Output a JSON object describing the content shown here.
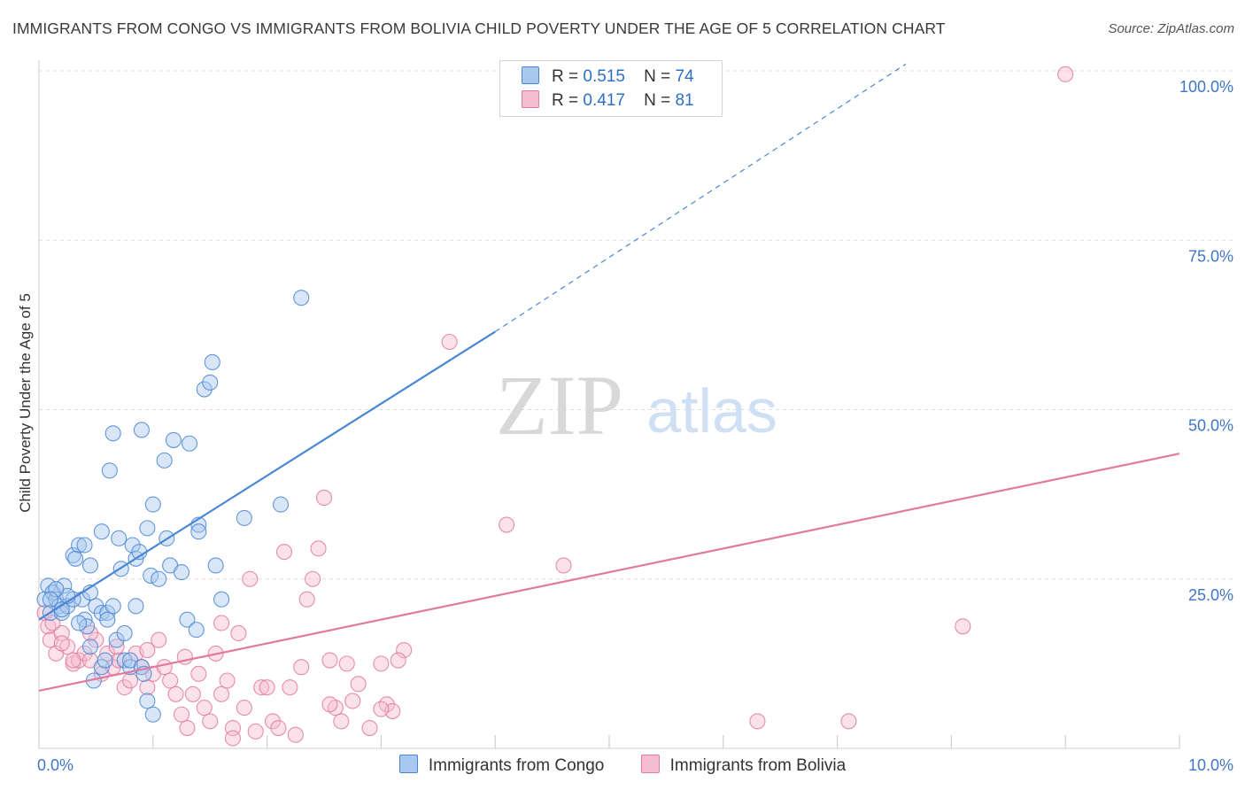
{
  "title": "IMMIGRANTS FROM CONGO VS IMMIGRANTS FROM BOLIVIA CHILD POVERTY UNDER THE AGE OF 5 CORRELATION CHART",
  "source": "Source: ZipAtlas.com",
  "watermark": {
    "zip": "ZIP",
    "atlas": "atlas"
  },
  "legend": {
    "series": [
      {
        "r_label": "R =",
        "r_value": "0.515",
        "n_label": "N =",
        "n_value": "74"
      },
      {
        "r_label": "R =",
        "r_value": "0.417",
        "n_label": "N =",
        "n_value": "81"
      }
    ]
  },
  "chart_data": {
    "type": "scatter",
    "title": "IMMIGRANTS FROM CONGO VS IMMIGRANTS FROM BOLIVIA CHILD POVERTY UNDER THE AGE OF 5 CORRELATION CHART",
    "xlabel": "",
    "ylabel": "Child Poverty Under the Age of 5",
    "xlim": [
      0,
      10
    ],
    "ylim": [
      0,
      100
    ],
    "x_tick_labels": [
      {
        "value": 0,
        "label": "0.0%"
      },
      {
        "value": 10,
        "label": "10.0%"
      }
    ],
    "y_tick_labels": [
      {
        "value": 25,
        "label": "25.0%"
      },
      {
        "value": 50,
        "label": "50.0%"
      },
      {
        "value": 75,
        "label": "75.0%"
      },
      {
        "value": 100,
        "label": "100.0%"
      }
    ],
    "grid": true,
    "series": [
      {
        "name": "Immigrants from Congo",
        "color": "#4a86d4",
        "fill": "#a9c8ee",
        "R": 0.515,
        "N": 74,
        "trend": {
          "x0": 0.0,
          "y0": 19.0,
          "x1": 4.0,
          "y1": 61.5,
          "dash_x1": 7.6,
          "dash_y1": 101.0
        },
        "points": [
          [
            0.05,
            22
          ],
          [
            0.08,
            24
          ],
          [
            0.1,
            20
          ],
          [
            0.12,
            23
          ],
          [
            0.15,
            22
          ],
          [
            0.18,
            21
          ],
          [
            0.2,
            20
          ],
          [
            0.22,
            24
          ],
          [
            0.25,
            21
          ],
          [
            0.3,
            28.5
          ],
          [
            0.32,
            28
          ],
          [
            0.35,
            30
          ],
          [
            0.38,
            22
          ],
          [
            0.4,
            19
          ],
          [
            0.4,
            30
          ],
          [
            0.42,
            18
          ],
          [
            0.45,
            15
          ],
          [
            0.45,
            27
          ],
          [
            0.48,
            10
          ],
          [
            0.5,
            21
          ],
          [
            0.55,
            20
          ],
          [
            0.55,
            12
          ],
          [
            0.58,
            13
          ],
          [
            0.6,
            20
          ],
          [
            0.55,
            32
          ],
          [
            0.62,
            41
          ],
          [
            0.65,
            46.5
          ],
          [
            0.68,
            16
          ],
          [
            0.7,
            31
          ],
          [
            0.72,
            26.5
          ],
          [
            0.75,
            13
          ],
          [
            0.75,
            17
          ],
          [
            0.8,
            12
          ],
          [
            0.8,
            13
          ],
          [
            0.82,
            30
          ],
          [
            0.85,
            28
          ],
          [
            0.85,
            21
          ],
          [
            0.88,
            29
          ],
          [
            0.9,
            47
          ],
          [
            0.9,
            12
          ],
          [
            0.92,
            11
          ],
          [
            0.95,
            32.5
          ],
          [
            0.98,
            25.5
          ],
          [
            1.0,
            36
          ],
          [
            1.05,
            25
          ],
          [
            1.1,
            42.5
          ],
          [
            1.12,
            31
          ],
          [
            1.15,
            27
          ],
          [
            1.18,
            45.5
          ],
          [
            1.25,
            26
          ],
          [
            1.3,
            19
          ],
          [
            1.32,
            45
          ],
          [
            1.38,
            17.5
          ],
          [
            1.4,
            33
          ],
          [
            1.4,
            32
          ],
          [
            1.45,
            53
          ],
          [
            1.5,
            54
          ],
          [
            1.52,
            57
          ],
          [
            1.55,
            27
          ],
          [
            1.6,
            22
          ],
          [
            1.8,
            34
          ],
          [
            2.12,
            36
          ],
          [
            2.3,
            66.5
          ],
          [
            0.95,
            7
          ],
          [
            1.0,
            5
          ],
          [
            0.3,
            22
          ],
          [
            0.2,
            20.5
          ],
          [
            0.25,
            22.5
          ],
          [
            0.15,
            23.5
          ],
          [
            0.1,
            22
          ],
          [
            0.45,
            23
          ],
          [
            0.65,
            21
          ],
          [
            0.35,
            18.5
          ],
          [
            0.6,
            19
          ]
        ]
      },
      {
        "name": "Immigrants from Bolivia",
        "color": "#e07aa0",
        "fill": "#f6bdd0",
        "R": 0.417,
        "N": 81,
        "trend": {
          "x0": 0.0,
          "y0": 8.5,
          "x1": 10.0,
          "y1": 43.5
        },
        "points": [
          [
            0.05,
            20
          ],
          [
            0.08,
            18
          ],
          [
            0.1,
            16
          ],
          [
            0.15,
            14
          ],
          [
            0.2,
            17
          ],
          [
            0.25,
            15
          ],
          [
            0.3,
            12.5
          ],
          [
            0.35,
            13
          ],
          [
            0.4,
            14
          ],
          [
            0.45,
            13
          ],
          [
            0.5,
            16
          ],
          [
            0.55,
            11
          ],
          [
            0.6,
            14
          ],
          [
            0.65,
            12
          ],
          [
            0.7,
            13
          ],
          [
            0.75,
            9
          ],
          [
            0.8,
            10
          ],
          [
            0.85,
            14
          ],
          [
            0.9,
            12
          ],
          [
            0.95,
            9
          ],
          [
            1.0,
            11
          ],
          [
            1.05,
            16
          ],
          [
            1.1,
            12
          ],
          [
            1.15,
            10
          ],
          [
            1.2,
            8
          ],
          [
            1.25,
            5
          ],
          [
            1.3,
            3
          ],
          [
            1.35,
            8
          ],
          [
            1.4,
            11
          ],
          [
            1.45,
            6
          ],
          [
            1.5,
            4
          ],
          [
            1.55,
            14
          ],
          [
            1.6,
            8
          ],
          [
            1.65,
            10
          ],
          [
            1.7,
            3
          ],
          [
            1.75,
            17
          ],
          [
            1.8,
            6
          ],
          [
            1.85,
            25
          ],
          [
            1.9,
            2.5
          ],
          [
            1.95,
            9
          ],
          [
            2.0,
            9
          ],
          [
            2.05,
            4
          ],
          [
            2.1,
            3
          ],
          [
            2.15,
            29
          ],
          [
            2.2,
            9
          ],
          [
            2.25,
            2
          ],
          [
            2.3,
            12
          ],
          [
            2.35,
            22
          ],
          [
            2.4,
            25
          ],
          [
            2.45,
            29.5
          ],
          [
            2.5,
            37
          ],
          [
            2.55,
            13
          ],
          [
            2.6,
            6
          ],
          [
            2.65,
            4
          ],
          [
            2.7,
            12.5
          ],
          [
            2.75,
            7
          ],
          [
            2.8,
            9.5
          ],
          [
            2.9,
            3
          ],
          [
            3.0,
            12.5
          ],
          [
            3.05,
            6.5
          ],
          [
            3.1,
            5.5
          ],
          [
            3.2,
            14.5
          ],
          [
            3.6,
            60
          ],
          [
            4.1,
            33
          ],
          [
            4.6,
            27
          ],
          [
            6.3,
            4
          ],
          [
            7.1,
            4
          ],
          [
            9.0,
            99.5
          ],
          [
            8.1,
            18
          ],
          [
            0.45,
            17
          ],
          [
            0.2,
            15.5
          ],
          [
            0.12,
            18.5
          ],
          [
            0.3,
            13
          ],
          [
            1.28,
            13.5
          ],
          [
            0.68,
            15
          ],
          [
            0.95,
            14.5
          ],
          [
            1.6,
            18.5
          ],
          [
            1.7,
            1.5
          ],
          [
            2.55,
            6.5
          ],
          [
            3.15,
            13
          ],
          [
            3.0,
            5.8
          ]
        ]
      }
    ]
  },
  "bottom_legend": [
    "Immigrants from Congo",
    "Immigrants from Bolivia"
  ]
}
